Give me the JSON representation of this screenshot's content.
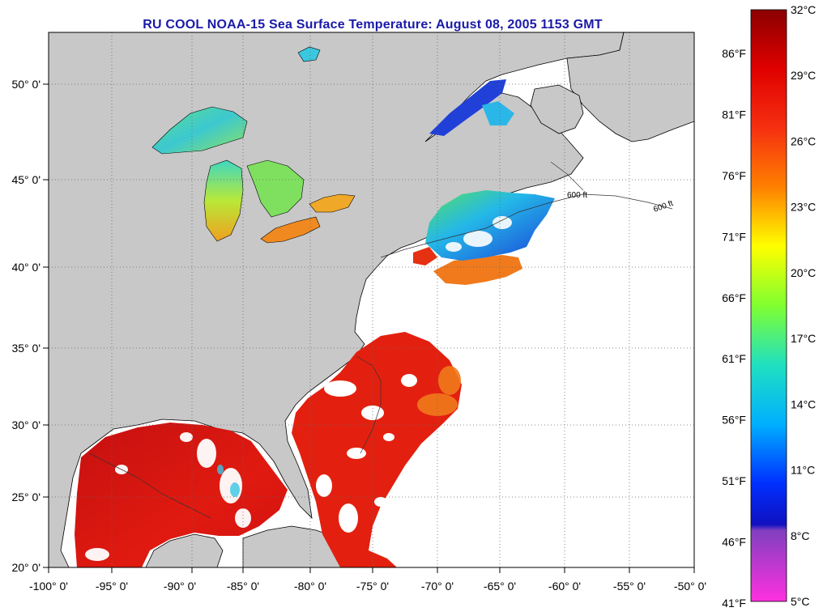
{
  "title": "RU COOL  NOAA-15  Sea Surface Temperature:  August 08, 2005 1153 GMT",
  "map": {
    "lon_ticks": [
      "-100° 0'",
      "-95° 0'",
      "-90° 0'",
      "-85° 0'",
      "-80° 0'",
      "-75° 0'",
      "-70° 0'",
      "-65° 0'",
      "-60° 0'",
      "-55° 0'",
      "-50° 0'"
    ],
    "lat_ticks": [
      "50° 0'",
      "45° 0'",
      "40° 0'",
      "35° 0'",
      "30° 0'",
      "25° 0'",
      "20° 0'"
    ],
    "contour_label": "600 ft",
    "colors": {
      "land": "#c8c8c8",
      "cloud": "#ffffff",
      "warm": "#e41a0c",
      "hot": "#c80b0b",
      "orange": "#f08020",
      "cool": "#2ab7e8",
      "cold": "#1c3ad8"
    }
  },
  "colorbar": {
    "celsius_labels": [
      "32°C",
      "29°C",
      "26°C",
      "23°C",
      "20°C",
      "17°C",
      "14°C",
      "11°C",
      "8°C",
      "5°C"
    ],
    "fahrenheit_labels": [
      "86°F",
      "81°F",
      "76°F",
      "71°F",
      "66°F",
      "61°F",
      "56°F",
      "51°F",
      "46°F",
      "41°F"
    ]
  }
}
